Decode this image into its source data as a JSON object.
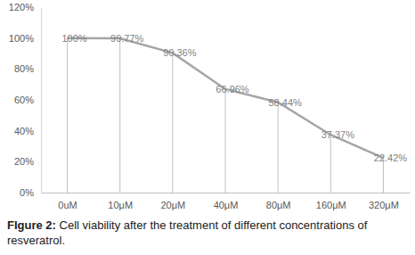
{
  "chart_data": {
    "type": "line",
    "title": "FIgure 2:",
    "subtitle": "Cell viability after the treatment of different concentrations of resveratrol.",
    "categories": [
      "0uM",
      "10μM",
      "20μM",
      "40μM",
      "80μM",
      "160μM",
      "320μM"
    ],
    "values": [
      100,
      99.77,
      90.36,
      66.96,
      58.44,
      37.37,
      22.42
    ],
    "value_labels": [
      "100%",
      "99.77%",
      "90.36%",
      "66.96%",
      "58.44%",
      "37.37%",
      "22.42%"
    ],
    "color": "#a5a5a5",
    "data_labels": true,
    "grid": false,
    "ylim": [
      0,
      120
    ],
    "yticks": [
      {
        "value": 0,
        "label": "0%"
      },
      {
        "value": 20,
        "label": "20%"
      },
      {
        "value": 40,
        "label": "40%"
      },
      {
        "value": 60,
        "label": "60%"
      },
      {
        "value": 80,
        "label": "80%"
      },
      {
        "value": 100,
        "label": "100%"
      },
      {
        "value": 120,
        "label": "120%"
      }
    ]
  }
}
